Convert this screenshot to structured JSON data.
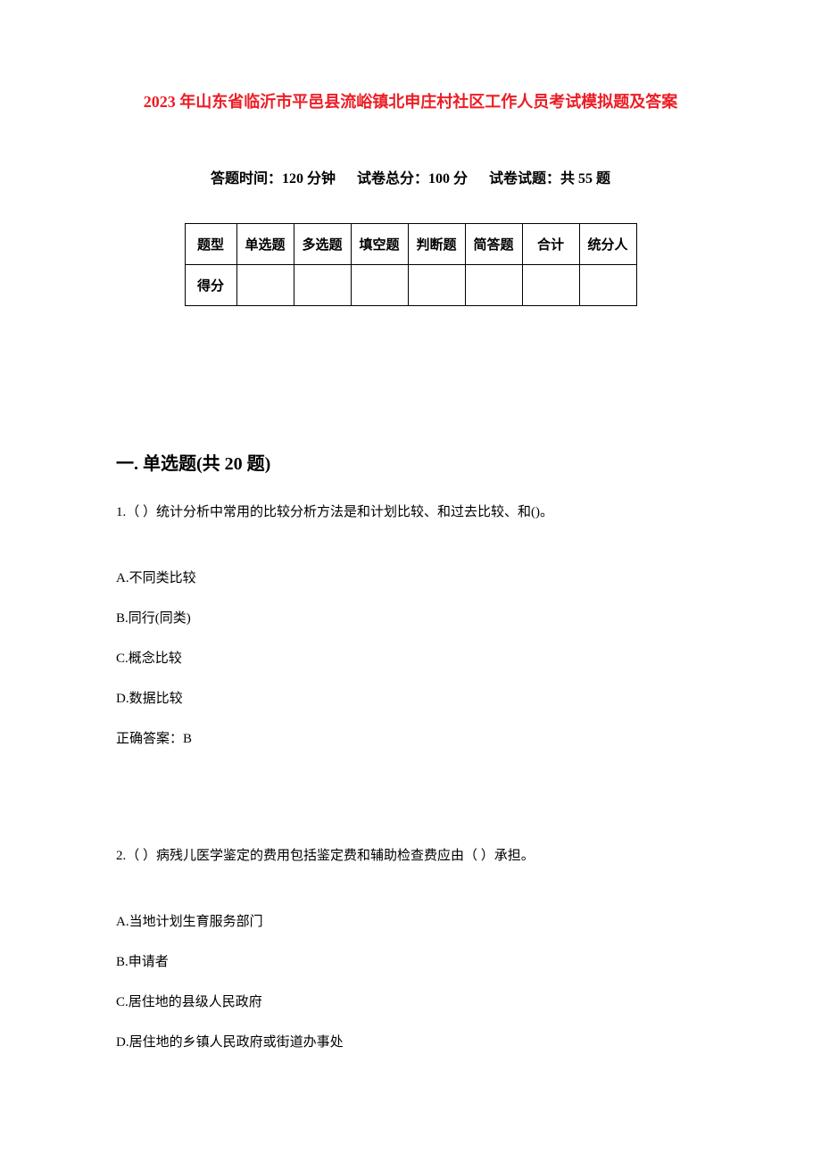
{
  "document": {
    "title": "2023 年山东省临沂市平邑县流峪镇北申庄村社区工作人员考试模拟题及答案",
    "title_color": "#ed1c24",
    "background_color": "#ffffff",
    "text_color": "#000000",
    "meta": {
      "time_label": "答题时间：120 分钟",
      "score_label": "试卷总分：100 分",
      "count_label": "试卷试题：共 55 题"
    },
    "score_table": {
      "columns": [
        "题型",
        "单选题",
        "多选题",
        "填空题",
        "判断题",
        "简答题",
        "合计",
        "统分人"
      ],
      "rows": [
        [
          "得分",
          "",
          "",
          "",
          "",
          "",
          "",
          ""
        ]
      ],
      "border_color": "#000000",
      "cell_fontsize": 15,
      "cell_fontweight": "bold"
    },
    "section1": {
      "heading": "一. 单选题(共 20 题)",
      "heading_fontsize": 20
    },
    "q1": {
      "stem": "1.（ ）统计分析中常用的比较分析方法是和计划比较、和过去比较、和()。",
      "options": {
        "A": "A.不同类比较",
        "B": "B.同行(同类)",
        "C": "C.概念比较",
        "D": "D.数据比较"
      },
      "answer": "正确答案：B"
    },
    "q2": {
      "stem": "2.（ ）病残儿医学鉴定的费用包括鉴定费和辅助检查费应由（  ）承担。",
      "options": {
        "A": "A.当地计划生育服务部门",
        "B": "B.申请者",
        "C": "C.居住地的县级人民政府",
        "D": "D.居住地的乡镇人民政府或街道办事处"
      }
    }
  }
}
